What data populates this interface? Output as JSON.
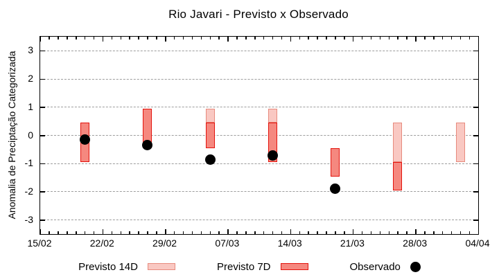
{
  "colors": {
    "band_14d_fill": "#f9c8c2",
    "band_14d_border": "#e78a7d",
    "band_7d_fill": "#f5887f",
    "band_7d_border": "#e3120b",
    "observed": "#000000",
    "grid": "#9c9c9c"
  },
  "legend": [
    {
      "label": "Previsto 14D"
    },
    {
      "label": "Previsto 7D"
    },
    {
      "label": "Observado"
    }
  ],
  "chart_data": {
    "type": "ranged-bar-with-scatter",
    "title": "Rio Javari - Previsto x Observado",
    "xlabel": "",
    "ylabel": "Anomalia de Preciptação Categorizada",
    "ylim": [
      -3.5,
      3.5
    ],
    "y_ticks": [
      3,
      2,
      1,
      0,
      -1,
      -2,
      -3
    ],
    "x_tick_labels": [
      "15/02",
      "22/02",
      "29/02",
      "07/03",
      "14/03",
      "21/03",
      "28/03",
      "04/04"
    ],
    "x_days_range": [
      0,
      49
    ],
    "x_major_step_days": 7,
    "x_minor_step_days": 1,
    "grid": "horizontal dashed lines at integer y values",
    "legend_position": "bottom",
    "series": [
      {
        "name": "Previsto 14D",
        "type": "range-bar",
        "points": [
          {
            "date": "05/03",
            "day": 19,
            "range": [
              0.45,
              0.95
            ]
          },
          {
            "date": "12/03",
            "day": 26,
            "range": [
              0.45,
              0.95
            ]
          },
          {
            "date": "26/03",
            "day": 40,
            "range": [
              -0.95,
              0.45
            ]
          },
          {
            "date": "02/04",
            "day": 47,
            "range": [
              -0.95,
              0.45
            ]
          }
        ]
      },
      {
        "name": "Previsto 7D",
        "type": "range-bar",
        "points": [
          {
            "date": "20/02",
            "day": 5,
            "range": [
              -0.95,
              0.45
            ]
          },
          {
            "date": "27/02",
            "day": 12,
            "range": [
              -0.45,
              0.95
            ]
          },
          {
            "date": "05/03",
            "day": 19,
            "range": [
              -0.45,
              0.45
            ]
          },
          {
            "date": "12/03",
            "day": 26,
            "range": [
              -0.95,
              0.45
            ]
          },
          {
            "date": "19/03",
            "day": 33,
            "range": [
              -1.45,
              -0.45
            ]
          },
          {
            "date": "26/03",
            "day": 40,
            "range": [
              -1.95,
              -0.95
            ]
          }
        ]
      },
      {
        "name": "Observado",
        "type": "scatter",
        "points": [
          {
            "date": "20/02",
            "day": 5,
            "value": -0.15
          },
          {
            "date": "27/02",
            "day": 12,
            "value": -0.35
          },
          {
            "date": "05/03",
            "day": 19,
            "value": -0.85
          },
          {
            "date": "12/03",
            "day": 26,
            "value": -0.7
          },
          {
            "date": "19/03",
            "day": 33,
            "value": -1.9
          }
        ]
      }
    ]
  }
}
